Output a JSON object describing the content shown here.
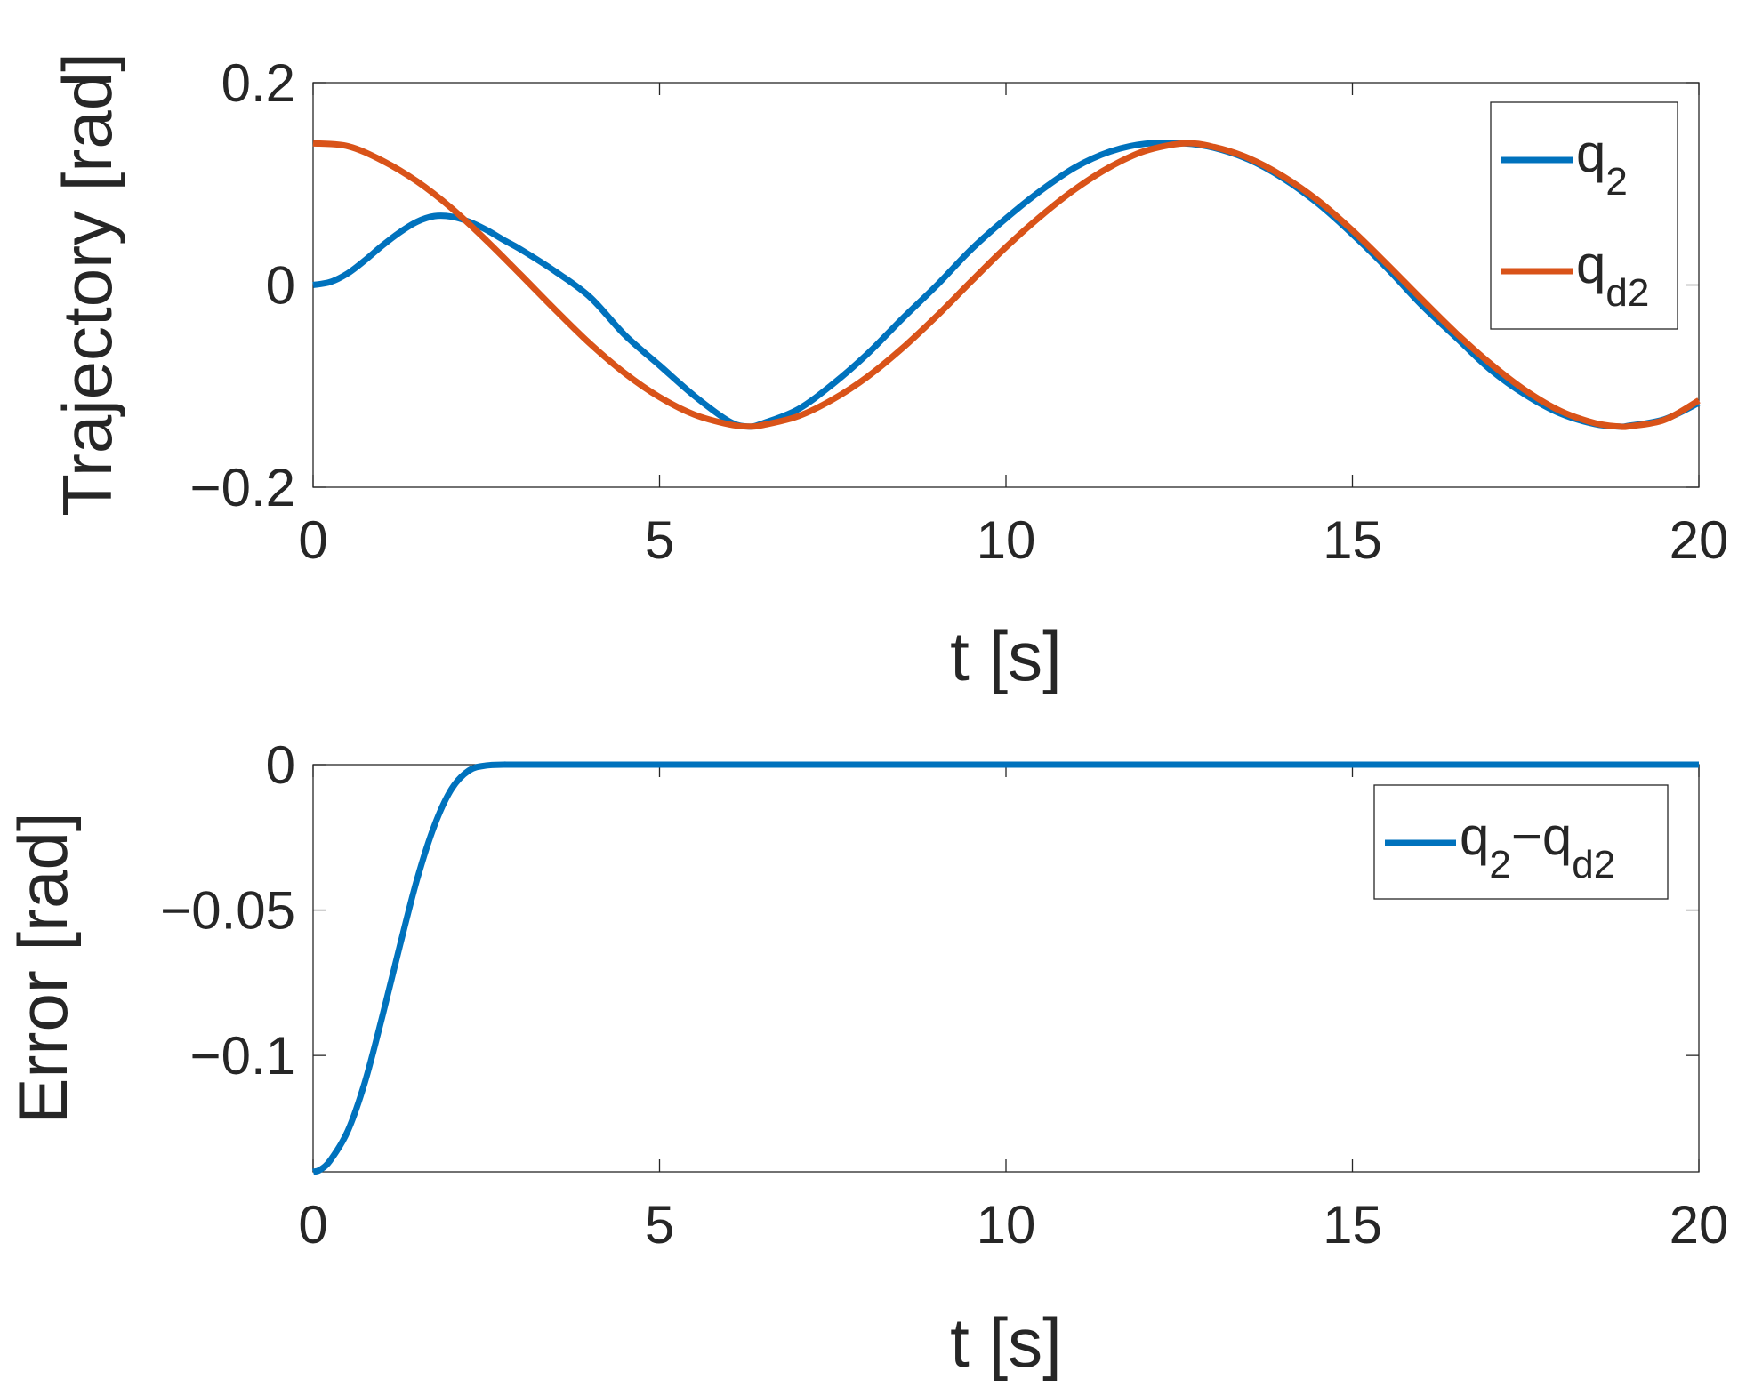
{
  "chart_data": [
    {
      "type": "line",
      "title": "",
      "xlabel": "t [s]",
      "ylabel": "Trajectory [rad]",
      "xlim": [
        0,
        20
      ],
      "ylim": [
        -0.2,
        0.2
      ],
      "xticks": [
        "0",
        "5",
        "10",
        "15",
        "20"
      ],
      "xtick_values": [
        0,
        5,
        10,
        15,
        20
      ],
      "yticks": [
        "0.2",
        "0",
        "−0.2"
      ],
      "ytick_values": [
        0.2,
        0,
        -0.2
      ],
      "grid": false,
      "legend_position": "top-right",
      "series": [
        {
          "name": "q",
          "subscript": "2",
          "color": "#0072BD",
          "x": [
            0,
            0.25,
            0.5,
            0.75,
            1.0,
            1.25,
            1.5,
            1.75,
            2.0,
            2.25,
            2.5,
            2.75,
            3.0,
            3.5,
            4.0,
            4.5,
            5.0,
            5.5,
            6.0,
            6.28,
            6.5,
            7.0,
            7.5,
            8.0,
            8.5,
            9.0,
            9.5,
            10.0,
            10.5,
            11.0,
            11.5,
            12.0,
            12.57,
            13.0,
            13.5,
            14.0,
            14.5,
            15.0,
            15.5,
            16.0,
            16.5,
            17.0,
            17.5,
            18.0,
            18.5,
            18.85,
            19.0,
            19.5,
            20.0
          ],
          "y": [
            0,
            0.003,
            0.0115,
            0.0245,
            0.039,
            0.052,
            0.0625,
            0.068,
            0.0675,
            0.0625,
            0.0545,
            0.0445,
            0.035,
            0.0132,
            -0.0122,
            -0.0495,
            -0.0795,
            -0.1095,
            -0.1346,
            -0.14,
            -0.1366,
            -0.1229,
            -0.098,
            -0.0682,
            -0.0336,
            -0.0004,
            0.0353,
            0.0658,
            0.0931,
            0.1163,
            0.1318,
            0.1395,
            0.14,
            0.1356,
            0.1241,
            0.1054,
            0.0806,
            0.0502,
            0.0165,
            -0.0199,
            -0.0522,
            -0.0842,
            -0.1087,
            -0.1271,
            -0.1376,
            -0.14,
            -0.1391,
            -0.1329,
            -0.1166
          ]
        },
        {
          "name": "q",
          "subscript": "d2",
          "color": "#D95319",
          "x": [
            0,
            0.5,
            1.0,
            1.5,
            2.0,
            2.5,
            3.0,
            3.5,
            4.0,
            4.5,
            5.0,
            5.5,
            6.0,
            6.28,
            6.5,
            7.0,
            7.5,
            8.0,
            8.5,
            9.0,
            9.5,
            10.0,
            10.5,
            11.0,
            11.5,
            12.0,
            12.57,
            13.0,
            13.5,
            14.0,
            14.5,
            15.0,
            15.5,
            16.0,
            16.5,
            17.0,
            17.5,
            18.0,
            18.5,
            18.85,
            19.0,
            19.5,
            20.0
          ],
          "y": [
            0.14,
            0.1372,
            0.1229,
            0.1024,
            0.0758,
            0.0441,
            0.0099,
            -0.0249,
            -0.0582,
            -0.0873,
            -0.1109,
            -0.1281,
            -0.1378,
            -0.14,
            -0.1384,
            -0.1298,
            -0.1132,
            -0.0908,
            -0.0628,
            -0.0308,
            0.0037,
            0.0374,
            0.0679,
            0.0948,
            0.1166,
            0.1323,
            0.14,
            0.1364,
            0.1254,
            0.1074,
            0.0836,
            0.0539,
            0.0205,
            -0.0141,
            -0.0478,
            -0.0782,
            -0.1044,
            -0.1245,
            -0.1366,
            -0.14,
            -0.1397,
            -0.1335,
            -0.1141
          ]
        }
      ]
    },
    {
      "type": "line",
      "title": "",
      "xlabel": "t [s]",
      "ylabel": "Error [rad]",
      "xlim": [
        0,
        20
      ],
      "ylim": [
        -0.14,
        0
      ],
      "xticks": [
        "0",
        "5",
        "10",
        "15",
        "20"
      ],
      "xtick_values": [
        0,
        5,
        10,
        15,
        20
      ],
      "yticks": [
        "0",
        "−0.05",
        "−0.1"
      ],
      "ytick_values": [
        0,
        -0.05,
        -0.1
      ],
      "grid": false,
      "legend_position": "top-right",
      "series": [
        {
          "name": "q",
          "subscript": "2",
          "name_part2": "−q",
          "subscript2": "d2",
          "color": "#0072BD",
          "x": [
            0,
            0.1,
            0.25,
            0.5,
            0.75,
            1.0,
            1.25,
            1.5,
            1.75,
            2.0,
            2.25,
            2.5,
            2.75,
            3.0,
            5.0,
            10.0,
            15.0,
            20.0
          ],
          "y": [
            -0.14,
            -0.1393,
            -0.136,
            -0.126,
            -0.109,
            -0.0865,
            -0.0625,
            -0.0395,
            -0.021,
            -0.0083,
            -0.002,
            -0.0003,
            0,
            0,
            0,
            0,
            0,
            0
          ]
        }
      ]
    }
  ]
}
